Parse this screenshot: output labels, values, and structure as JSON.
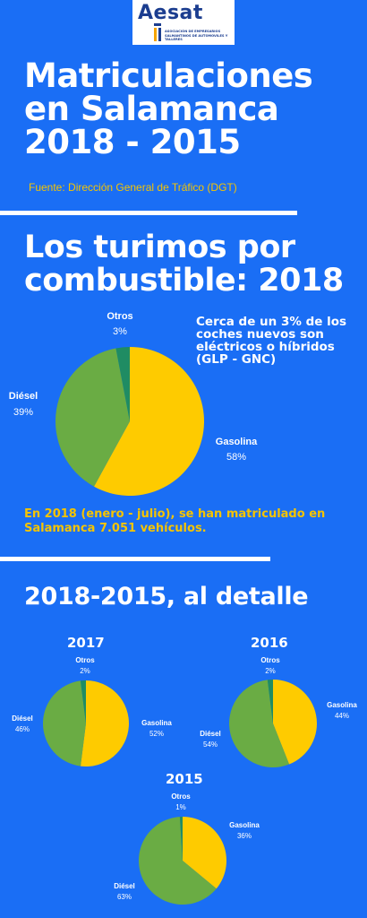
{
  "logo": {
    "name": "Aesat",
    "subtitle": "ASOCIACIÓN DE EMPRESARIOS SALMANTINOS DE AUTOMOVILES Y TALLERES"
  },
  "header": {
    "title_line1": "Matriculaciones",
    "title_line2": "en Salamanca",
    "title_line3": "2018 - 2015",
    "source": "Fuente: Dirección General de Tráfico (DGT)"
  },
  "section1": {
    "heading_line1": "Los turimos por",
    "heading_line2": "combustible: 2018",
    "note": "Cerca de un 3% de los coches nuevos son eléctricos o híbridos (GLP - GNC)",
    "summary": "En 2018 (enero - julio), se han matriculado en Salamanca 7.051 vehículos."
  },
  "section2": {
    "heading": "2018-2015, al detalle"
  },
  "colors": {
    "background": "#1a6ef5",
    "gasolina": "#fecb00",
    "diesel": "#6aac44",
    "otros": "#1f8c63",
    "accent_text": "#f5c400"
  },
  "chart_data": [
    {
      "type": "pie",
      "title": "2018",
      "categories": [
        "Gasolina",
        "Diésel",
        "Otros"
      ],
      "values": [
        58,
        39,
        3
      ],
      "labels": [
        "58%",
        "39%",
        "3%"
      ]
    },
    {
      "type": "pie",
      "title": "2017",
      "categories": [
        "Gasolina",
        "Diésel",
        "Otros"
      ],
      "values": [
        52,
        46,
        2
      ],
      "labels": [
        "52%",
        "46%",
        "2%"
      ]
    },
    {
      "type": "pie",
      "title": "2016",
      "categories": [
        "Gasolina",
        "Diésel",
        "Otros"
      ],
      "values": [
        44,
        54,
        2
      ],
      "labels": [
        "44%",
        "54%",
        "2%"
      ]
    },
    {
      "type": "pie",
      "title": "2015",
      "categories": [
        "Gasolina",
        "Diésel",
        "Otros"
      ],
      "values": [
        36,
        63,
        1
      ],
      "labels": [
        "36%",
        "63%",
        "1%"
      ]
    }
  ]
}
